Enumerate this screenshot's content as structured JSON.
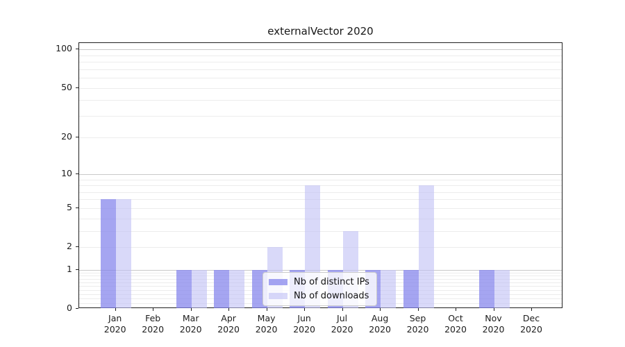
{
  "chart_data": {
    "type": "bar",
    "title": "externalVector 2020",
    "categories": [
      "Jan 2020",
      "Feb 2020",
      "Mar 2020",
      "Apr 2020",
      "May 2020",
      "Jun 2020",
      "Jul 2020",
      "Aug 2020",
      "Sep 2020",
      "Oct 2020",
      "Nov 2020",
      "Dec 2020"
    ],
    "series": [
      {
        "name": "Nb of distinct IPs",
        "color": "rgba(130,130,235,0.72)",
        "values": [
          6,
          0,
          1,
          1,
          1,
          1,
          1,
          1,
          1,
          0,
          1,
          0
        ]
      },
      {
        "name": "Nb of downloads",
        "color": "rgba(192,192,245,0.6)",
        "values": [
          6,
          0,
          1,
          1,
          2,
          8,
          3,
          1,
          8,
          0,
          1,
          0
        ]
      }
    ],
    "yscale": "log1p",
    "ylim": [
      0,
      112
    ],
    "y_axis": {
      "tick_values": [
        100,
        50,
        20,
        10,
        5,
        2,
        1,
        0
      ],
      "major_gridlines": [
        1,
        10,
        100
      ],
      "minor_gridlines": [
        0.1,
        0.2,
        0.3,
        0.4,
        0.5,
        0.6,
        0.7,
        0.8,
        0.9,
        2,
        3,
        4,
        5,
        6,
        7,
        8,
        9,
        20,
        30,
        40,
        50,
        60,
        70,
        80,
        90
      ]
    },
    "grid": true,
    "legend_position": "lower center"
  },
  "colors": {
    "distinct_ips_bar": "rgba(130,130,235,0.72)",
    "downloads_bar": "rgba(192,192,245,0.6)",
    "major_grid": "#c9c9c9",
    "minor_grid": "#ececec"
  }
}
